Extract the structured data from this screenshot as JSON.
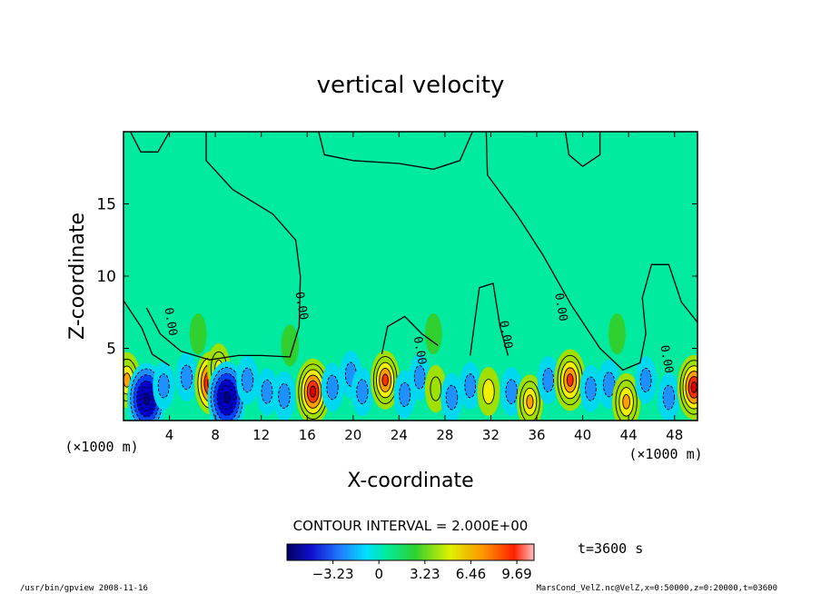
{
  "chart_data": {
    "type": "heatmap",
    "title": "vertical velocity",
    "xlabel": "X-coordinate",
    "ylabel": "Z-coordinate",
    "x_unit_note": "(×1000 m)",
    "y_unit_note": "(×1000 m)",
    "xlim": [
      0,
      50
    ],
    "ylim": [
      0,
      20
    ],
    "x_ticks": [
      4,
      8,
      12,
      16,
      20,
      24,
      28,
      32,
      36,
      40,
      44,
      48
    ],
    "y_ticks": [
      5,
      10,
      15
    ],
    "contour_label": "0.00",
    "contour_interval_text": "CONTOUR INTERVAL = 2.000E+00",
    "colorbar_ticks": [
      -3.23,
      0,
      3.23,
      6.46,
      9.69
    ],
    "colorbar_tick_labels": [
      "−3.23",
      "0",
      "3.23",
      "6.46",
      "9.69"
    ],
    "time_label": "t=3600 s",
    "blobs": [
      {
        "x": 0.3,
        "z": 2.8,
        "v": 5.5
      },
      {
        "x": 2.0,
        "z": 1.5,
        "v": -11.0
      },
      {
        "x": 3.5,
        "z": 2.4,
        "v": -2.8
      },
      {
        "x": 5.5,
        "z": 3.0,
        "v": -3.0
      },
      {
        "x": 7.6,
        "z": 2.6,
        "v": 8.0
      },
      {
        "x": 8.3,
        "z": 3.6,
        "v": 3.5
      },
      {
        "x": 9.0,
        "z": 1.6,
        "v": -11.0
      },
      {
        "x": 10.8,
        "z": 2.8,
        "v": -3.0
      },
      {
        "x": 12.5,
        "z": 2.0,
        "v": -2.5
      },
      {
        "x": 14.0,
        "z": 1.7,
        "v": -3.2
      },
      {
        "x": 16.5,
        "z": 2.0,
        "v": 9.0
      },
      {
        "x": 18.2,
        "z": 2.3,
        "v": -3.0
      },
      {
        "x": 19.8,
        "z": 3.2,
        "v": -2.6
      },
      {
        "x": 20.8,
        "z": 2.0,
        "v": -3.0
      },
      {
        "x": 22.8,
        "z": 2.8,
        "v": 6.5
      },
      {
        "x": 24.5,
        "z": 1.8,
        "v": -2.8
      },
      {
        "x": 25.8,
        "z": 3.0,
        "v": -2.3
      },
      {
        "x": 27.2,
        "z": 2.2,
        "v": 2.6
      },
      {
        "x": 28.6,
        "z": 1.6,
        "v": -3.0
      },
      {
        "x": 30.2,
        "z": 2.4,
        "v": -2.6
      },
      {
        "x": 31.8,
        "z": 2.0,
        "v": 3.2
      },
      {
        "x": 33.8,
        "z": 2.0,
        "v": -3.0
      },
      {
        "x": 35.4,
        "z": 1.3,
        "v": 5.0
      },
      {
        "x": 37.0,
        "z": 2.8,
        "v": -2.6
      },
      {
        "x": 38.9,
        "z": 2.8,
        "v": 7.5
      },
      {
        "x": 40.7,
        "z": 2.2,
        "v": -2.5
      },
      {
        "x": 42.3,
        "z": 2.5,
        "v": -3.2
      },
      {
        "x": 43.8,
        "z": 1.3,
        "v": 6.0
      },
      {
        "x": 45.5,
        "z": 2.8,
        "v": -2.6
      },
      {
        "x": 47.5,
        "z": 1.6,
        "v": -3.0
      },
      {
        "x": 49.7,
        "z": 2.3,
        "v": 8.5
      },
      {
        "x": 6.5,
        "z": 6.0,
        "v": 0.4
      },
      {
        "x": 14.5,
        "z": 5.2,
        "v": 0.6
      },
      {
        "x": 27.0,
        "z": 6.0,
        "v": 0.4
      },
      {
        "x": 43.0,
        "z": 6.0,
        "v": 0.4
      }
    ],
    "zero_contours": [
      [
        [
          0.6,
          20
        ],
        [
          1.5,
          18.6
        ],
        [
          3.0,
          18.6
        ],
        [
          4.0,
          20
        ]
      ],
      [
        [
          2.0,
          7.8
        ],
        [
          3.2,
          6.0
        ],
        [
          5.0,
          4.8
        ],
        [
          7.5,
          4.2
        ],
        [
          10,
          4.5
        ],
        [
          12,
          4.5
        ],
        [
          14.5,
          4.4
        ],
        [
          15.3,
          6.5
        ],
        [
          15.4,
          10
        ],
        [
          15.0,
          12.5
        ],
        [
          13.0,
          14.3
        ],
        [
          9.5,
          16.0
        ],
        [
          7.2,
          18.0
        ],
        [
          7.2,
          20
        ]
      ],
      [
        [
          30.4,
          20
        ],
        [
          29.3,
          18.0
        ],
        [
          27.0,
          17.4
        ],
        [
          24.0,
          17.8
        ],
        [
          20.0,
          18.0
        ],
        [
          17.5,
          18.4
        ],
        [
          17.0,
          20
        ]
      ],
      [
        [
          0,
          8.3
        ],
        [
          1.6,
          6.4
        ],
        [
          2.5,
          4.6
        ],
        [
          4.0,
          3.8
        ]
      ],
      [
        [
          38.5,
          20
        ],
        [
          38.8,
          18.4
        ],
        [
          40.0,
          17.6
        ],
        [
          41.5,
          18.4
        ],
        [
          41.5,
          20
        ]
      ],
      [
        [
          31.6,
          20
        ],
        [
          31.7,
          17.0
        ],
        [
          34.3,
          14.2
        ],
        [
          36.5,
          11.5
        ],
        [
          39.0,
          8.0
        ],
        [
          41.5,
          5.0
        ],
        [
          43.5,
          3.5
        ],
        [
          45.0,
          4.0
        ],
        [
          45.5,
          6.0
        ],
        [
          45.2,
          8.5
        ],
        [
          46.0,
          10.8
        ],
        [
          47.5,
          10.8
        ],
        [
          48.6,
          8.2
        ],
        [
          50.0,
          6.8
        ]
      ],
      [
        [
          22.5,
          4.6
        ],
        [
          23.0,
          6.5
        ],
        [
          24.5,
          7.2
        ],
        [
          26.0,
          6.0
        ],
        [
          27.4,
          5.2
        ]
      ],
      [
        [
          30.2,
          4.5
        ],
        [
          31.0,
          9.2
        ],
        [
          32.2,
          9.5
        ],
        [
          32.8,
          6.5
        ],
        [
          33.5,
          4.5
        ]
      ]
    ]
  },
  "footer": {
    "left": "/usr/bin/gpview   2008-11-16",
    "right": "MarsCond_VelZ.nc@VelZ,x=0:50000,z=0:20000,t=03600"
  },
  "colors": {
    "background_field": "#00EB9F",
    "contour_line": "#000000",
    "frame": "#000000"
  }
}
